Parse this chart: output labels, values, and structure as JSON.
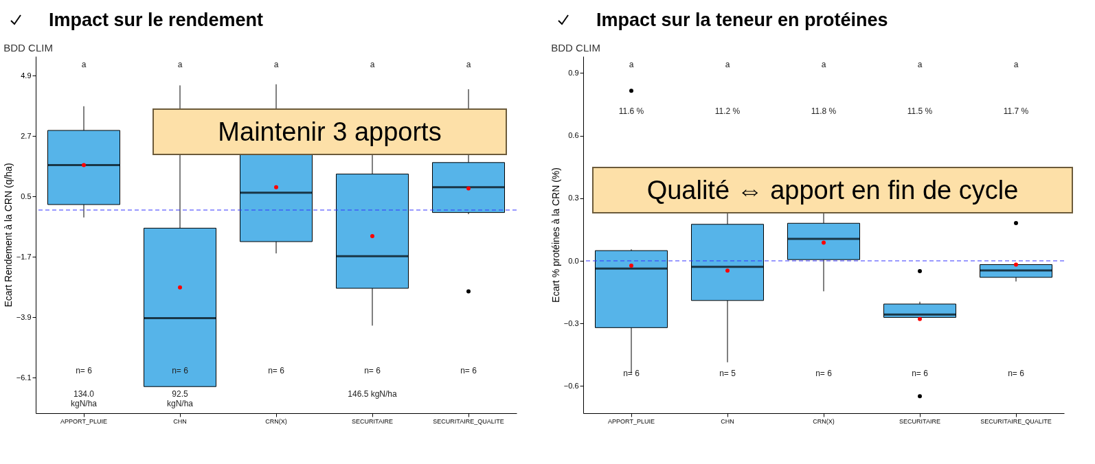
{
  "chart_data": [
    {
      "type": "box",
      "title": "Impact sur le rendement",
      "subtitle": "BDD CLIM",
      "ylabel": "Ecart Rendement à la CRN (q/ha)",
      "categories": [
        "APPORT_PLUIE",
        "CHN",
        "CRN(X)",
        "SECURITAIRE",
        "SECURITAIRE_QUALITE"
      ],
      "series": [
        {
          "color": "#56b4e9",
          "boxes": [
            {
              "low": -0.27,
              "q1": 0.2,
              "median": 1.64,
              "q3": 2.9,
              "high": 3.78,
              "mean": 1.64
            },
            {
              "low": -6.43,
              "q1": -6.43,
              "median": -3.94,
              "q3": -0.66,
              "high": 4.54,
              "mean": -2.82
            },
            {
              "low": -1.58,
              "q1": -1.15,
              "median": 0.63,
              "q3": 2.03,
              "high": 4.58,
              "mean": 0.83
            },
            {
              "low": -4.21,
              "q1": -2.85,
              "median": -1.68,
              "q3": 1.31,
              "high": 2.6,
              "mean": -0.95
            },
            {
              "low": -0.15,
              "q1": -0.09,
              "median": 0.83,
              "q3": 1.73,
              "high": 4.4,
              "mean": 0.79,
              "outliers": [
                -2.96
              ]
            }
          ]
        }
      ],
      "ylim": [
        -7.4,
        5.6
      ],
      "yticks": [
        4.9,
        2.7,
        0.5,
        -1.7,
        -3.9,
        -6.1
      ],
      "ref_lines": [
        {
          "axis": "y",
          "value": 0,
          "color": "#3333ff",
          "line_style": "dashed"
        }
      ],
      "annotations": [
        "Maintenir 3 apports",
        "a",
        "a",
        "a",
        "a",
        "a",
        "n= 6",
        "n= 6",
        "n= 6",
        "n= 6",
        "n= 6",
        "134.0\nkgN/ha",
        "92.5\nkgN/ha",
        "146.5 kgN/ha"
      ]
    },
    {
      "type": "box",
      "title": "Impact sur la teneur en protéines",
      "subtitle": "BDD CLIM",
      "ylabel": "Ecart % protéines à la CRN (%)",
      "categories": [
        "APPORT_PLUIE",
        "CHN",
        "CRN(X)",
        "SECURITAIRE",
        "SECURITAIRE_QUALITE"
      ],
      "series": [
        {
          "color": "#56b4e9",
          "boxes": [
            {
              "low": -0.54,
              "q1": -0.32,
              "median": -0.037,
              "q3": 0.049,
              "high": 0.055,
              "mean": -0.023,
              "outliers": [
                0.815
              ]
            },
            {
              "low": -0.486,
              "q1": -0.19,
              "median": -0.029,
              "q3": 0.175,
              "high": 0.33,
              "mean": -0.047
            },
            {
              "low": -0.146,
              "q1": 0.006,
              "median": 0.105,
              "q3": 0.18,
              "high": 0.283,
              "mean": 0.087
            },
            {
              "low": -0.272,
              "q1": -0.271,
              "median": -0.257,
              "q3": -0.207,
              "high": -0.196,
              "mean": -0.279,
              "outliers": [
                -0.049,
                -0.649
              ]
            },
            {
              "low": -0.099,
              "q1": -0.079,
              "median": -0.046,
              "q3": -0.018,
              "high": -0.018,
              "mean": -0.018,
              "outliers": [
                0.181
              ]
            }
          ]
        }
      ],
      "ylim": [
        -0.73,
        0.98
      ],
      "yticks": [
        0.9,
        0.6,
        0.3,
        {
          "value": 0,
          "label": "0.0"
        },
        -0.3,
        -0.6
      ],
      "ref_lines": [
        {
          "axis": "y",
          "value": 0,
          "color": "#3333ff",
          "line_style": "dashed"
        }
      ],
      "annotations": [
        "Qualité ⇔ apport en fin de cycle",
        "a",
        "a",
        "a",
        "a",
        "a",
        "11.6 %",
        "11.2 %",
        "11.8 %",
        "11.5 %",
        "11.7 %",
        "n= 6",
        "n= 5",
        "n= 6",
        "n= 6",
        "n= 6"
      ]
    }
  ]
}
